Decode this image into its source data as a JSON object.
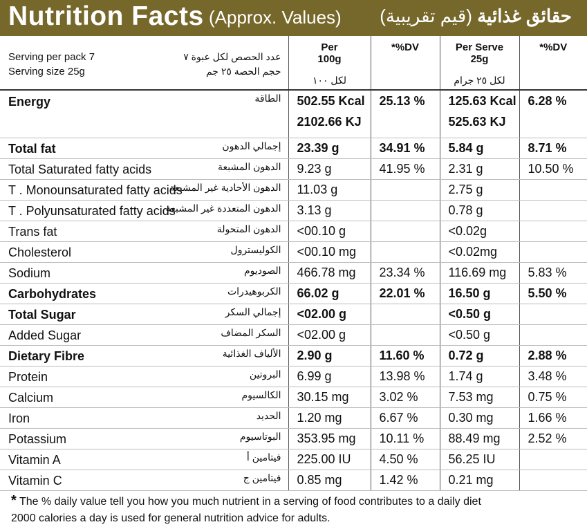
{
  "header": {
    "title": "Nutrition Facts",
    "subtitle": "(Approx. Values)",
    "title_ar": "حقائق غذائية",
    "subtitle_ar": "(قيم تقريبية)",
    "bg_color": "#76672a"
  },
  "columns": {
    "per100_label": "Per",
    "per100_value": "100g",
    "per100_ar": "لكل ١٠٠",
    "dv1_label": "*%DV",
    "perserve_label": "Per Serve",
    "perserve_value": "25g",
    "perserve_ar": "لكل ٢٥ جرام",
    "dv2_label": "*%DV"
  },
  "serving": {
    "per_pack": "Serving per pack 7",
    "size": "Serving size 25g",
    "per_pack_ar": "عدد الحصص لكل عبوة ٧",
    "size_ar": "حجم الحصة ٢٥ جم"
  },
  "energy": {
    "name": "Energy",
    "name_ar": "الطاقة",
    "per100_kcal": "502.55 Kcal",
    "per100_kj": "2102.66 KJ",
    "dv1": "25.13 %",
    "perserve_kcal": "125.63 Kcal",
    "perserve_kj": "525.63 KJ",
    "dv2": "6.28 %"
  },
  "rows": [
    {
      "name": "Total fat",
      "name_ar": "إجمالي الدهون",
      "per100": "23.39 g",
      "dv1": "34.91 %",
      "perserve": "5.84 g",
      "dv2": "8.71 %"
    },
    {
      "name": "Total Saturated fatty acids",
      "name_ar": "الدهون المشبعة",
      "per100": "9.23 g",
      "dv1": "41.95 %",
      "perserve": "2.31 g",
      "dv2": "10.50 %"
    },
    {
      "name": "T . Monounsaturated fatty acids",
      "name_ar": "الدهون الأحادية غير المشبعة",
      "per100": "11.03 g",
      "dv1": "",
      "perserve": "2.75 g",
      "dv2": ""
    },
    {
      "name": "T . Polyunsaturated fatty acids",
      "name_ar": "الدهون المتعددة غير المشبعة",
      "per100": "3.13 g",
      "dv1": "",
      "perserve": "0.78 g",
      "dv2": ""
    },
    {
      "name": "Trans fat",
      "name_ar": "الدهون المتحولة",
      "per100": "<00.10 g",
      "dv1": "",
      "perserve": "<0.02g",
      "dv2": ""
    },
    {
      "name": "Cholesterol",
      "name_ar": "الكوليسترول",
      "per100": "<00.10 mg",
      "dv1": "",
      "perserve": "<0.02mg",
      "dv2": ""
    },
    {
      "name": "Sodium",
      "name_ar": "الصوديوم",
      "per100": "466.78 mg",
      "dv1": "23.34 %",
      "perserve": "116.69 mg",
      "dv2": "5.83 %"
    },
    {
      "name": "Carbohydrates",
      "name_ar": "الكربوهيدرات",
      "per100": "66.02 g",
      "dv1": "22.01 %",
      "perserve": "16.50 g",
      "dv2": "5.50 %"
    },
    {
      "name": "Total Sugar",
      "name_ar": "إجمالي السكر",
      "per100": "<02.00 g",
      "dv1": "",
      "perserve": "<0.50 g",
      "dv2": ""
    },
    {
      "name": "Added Sugar",
      "name_ar": "السكر المضاف",
      "per100": "<02.00 g",
      "dv1": "",
      "perserve": "<0.50 g",
      "dv2": ""
    },
    {
      "name": "Dietary Fibre",
      "name_ar": "الألياف الغذائية",
      "per100": "2.90 g",
      "dv1": "11.60 %",
      "perserve": "0.72 g",
      "dv2": "2.88 %"
    },
    {
      "name": "Protein",
      "name_ar": "البروتين",
      "per100": "6.99 g",
      "dv1": "13.98 %",
      "perserve": "1.74 g",
      "dv2": "3.48 %"
    },
    {
      "name": "Calcium",
      "name_ar": "الكالسيوم",
      "per100": "30.15 mg",
      "dv1": "3.02 %",
      "perserve": "7.53 mg",
      "dv2": "0.75 %"
    },
    {
      "name": "Iron",
      "name_ar": "الحديد",
      "per100": "1.20 mg",
      "dv1": "6.67 %",
      "perserve": "0.30 mg",
      "dv2": "1.66 %"
    },
    {
      "name": "Potassium",
      "name_ar": "البوتاسيوم",
      "per100": "353.95 mg",
      "dv1": "10.11 %",
      "perserve": "88.49 mg",
      "dv2": "2.52 %"
    },
    {
      "name": "Vitamin A",
      "name_ar": "فيتامين أ",
      "per100": "225.00 IU",
      "dv1": "4.50 %",
      "perserve": "56.25 IU",
      "dv2": ""
    },
    {
      "name": "Vitamin C",
      "name_ar": "فيتامين ج",
      "per100": "0.85 mg",
      "dv1": "1.42 %",
      "perserve": "0.21 mg",
      "dv2": ""
    }
  ],
  "footnote": {
    "star": "*",
    "line1": "The % daily value tell you how you much nutrient in a serving of food contributes to a daily diet",
    "line2": "2000 calories a day is used for general nutrition advice for adults."
  }
}
